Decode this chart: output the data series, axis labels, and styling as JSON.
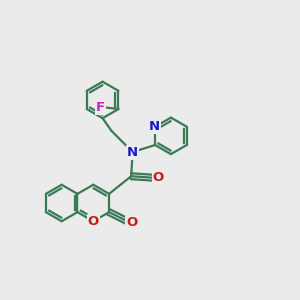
{
  "background_color": "#ebebeb",
  "bond_color": "#3a7a55",
  "bond_width": 1.6,
  "atom_colors": {
    "N": "#1a1acc",
    "O": "#cc1a1a",
    "F": "#cc22cc"
  },
  "font_size": 9.5,
  "figsize": [
    3.0,
    3.0
  ],
  "dpi": 100,
  "xlim": [
    0,
    10
  ],
  "ylim": [
    0,
    10
  ]
}
